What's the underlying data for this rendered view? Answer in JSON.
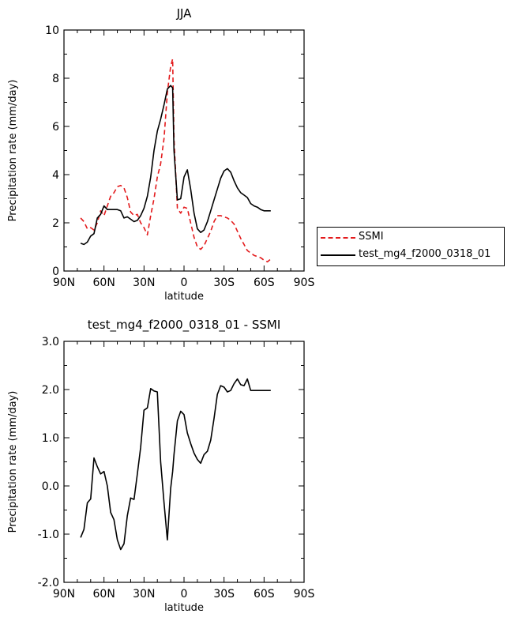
{
  "chart_data": [
    {
      "type": "line",
      "title": "JJA",
      "xlabel": "latitude",
      "ylabel": "Precipitation rate (mm/day)",
      "xlim": [
        90,
        -90
      ],
      "ylim": [
        0,
        10
      ],
      "xticks": [
        90,
        60,
        30,
        0,
        -30,
        -60,
        -90
      ],
      "xtick_labels": [
        "90N",
        "60N",
        "30N",
        "0",
        "30S",
        "60S",
        "90S"
      ],
      "yticks": [
        0,
        2,
        4,
        6,
        8,
        10
      ],
      "ytick_labels": [
        "0",
        "2",
        "4",
        "6",
        "8",
        "10"
      ],
      "grid": false,
      "legend": "outside-right",
      "series": [
        {
          "name": "SSMI",
          "color": "#e31a1c",
          "style": "dashed",
          "x": [
            77.5,
            75,
            72.5,
            70,
            67.5,
            65,
            62.5,
            60,
            57.5,
            55,
            52.5,
            50,
            47.5,
            45,
            42.5,
            40,
            37.5,
            35,
            32.5,
            30,
            27.5,
            25,
            22.5,
            20,
            17.5,
            15,
            12.5,
            10,
            8.5,
            7.5,
            5,
            2.5,
            0,
            -2.5,
            -5,
            -7.5,
            -10,
            -12.5,
            -15,
            -17.5,
            -20,
            -22.5,
            -25,
            -27.5,
            -30,
            -32.5,
            -35,
            -37.5,
            -40,
            -42.5,
            -45,
            -47.5,
            -50,
            -52.5,
            -55,
            -57.5,
            -60,
            -62.5,
            -65
          ],
          "values": [
            2.2,
            2.05,
            1.75,
            1.8,
            1.7,
            2.0,
            2.5,
            2.3,
            2.7,
            3.1,
            3.25,
            3.5,
            3.55,
            3.45,
            3.05,
            2.45,
            2.3,
            2.35,
            2.0,
            1.8,
            1.5,
            2.3,
            3.0,
            3.9,
            4.45,
            5.5,
            7.4,
            8.5,
            8.8,
            5.5,
            2.6,
            2.4,
            2.65,
            2.6,
            2.0,
            1.4,
            1.0,
            0.9,
            1.05,
            1.35,
            1.65,
            2.05,
            2.3,
            2.3,
            2.25,
            2.2,
            2.1,
            1.95,
            1.65,
            1.35,
            1.1,
            0.85,
            0.75,
            0.65,
            0.6,
            0.55,
            0.45,
            0.38,
            0.5
          ]
        },
        {
          "name": "test_mg4_f2000_0318_01",
          "color": "#000000",
          "style": "solid",
          "x": [
            77.5,
            75,
            72.5,
            70,
            67.5,
            65,
            62.5,
            60,
            57.5,
            55,
            52.5,
            50,
            47.5,
            45,
            42.5,
            40,
            37.5,
            35,
            32.5,
            30,
            27.5,
            25,
            22.5,
            20,
            17.5,
            15,
            12.5,
            10,
            8.5,
            7.5,
            5,
            2.5,
            0,
            -2.5,
            -5,
            -7.5,
            -10,
            -12.5,
            -15,
            -17.5,
            -20,
            -22.5,
            -25,
            -27.5,
            -30,
            -32.5,
            -35,
            -37.5,
            -40,
            -42.5,
            -45,
            -47.5,
            -50,
            -52.5,
            -55,
            -57.5,
            -60,
            -62.5,
            -65
          ],
          "values": [
            1.15,
            1.1,
            1.2,
            1.45,
            1.55,
            2.2,
            2.35,
            2.7,
            2.55,
            2.55,
            2.55,
            2.55,
            2.5,
            2.2,
            2.25,
            2.15,
            2.05,
            2.1,
            2.3,
            2.6,
            3.1,
            3.9,
            5.0,
            5.8,
            6.3,
            6.9,
            7.55,
            7.7,
            7.6,
            5.0,
            2.95,
            3.0,
            3.9,
            4.2,
            3.4,
            2.4,
            1.75,
            1.6,
            1.7,
            2.05,
            2.5,
            2.95,
            3.4,
            3.85,
            4.15,
            4.25,
            4.1,
            3.75,
            3.45,
            3.25,
            3.15,
            3.05,
            2.8,
            2.7,
            2.65,
            2.55,
            2.5,
            2.5,
            2.5
          ]
        }
      ]
    },
    {
      "type": "line",
      "title": "test_mg4_f2000_0318_01 - SSMI",
      "xlabel": "latitude",
      "ylabel": "Precipitation rate (mm/day)",
      "xlim": [
        90,
        -90
      ],
      "ylim": [
        -2.0,
        3.0
      ],
      "xticks": [
        90,
        60,
        30,
        0,
        -30,
        -60,
        -90
      ],
      "xtick_labels": [
        "90N",
        "60N",
        "30N",
        "0",
        "30S",
        "60S",
        "90S"
      ],
      "yticks": [
        -2,
        -1,
        0,
        1,
        2,
        3
      ],
      "ytick_labels": [
        "-2.0",
        "-1.0",
        "0.0",
        "1.0",
        "2.0",
        "3.0"
      ],
      "grid": false,
      "series": [
        {
          "color": "#000000",
          "style": "solid",
          "x": [
            77.5,
            75,
            72.5,
            70,
            67.5,
            65,
            62.5,
            60,
            57.5,
            55,
            52.5,
            50,
            47.5,
            45,
            42.5,
            40,
            37.5,
            35,
            32.5,
            30,
            27.5,
            25,
            22.5,
            20,
            17.5,
            15,
            12.5,
            10,
            8.5,
            7.5,
            5,
            2.5,
            0,
            -2.5,
            -5,
            -7.5,
            -10,
            -12.5,
            -15,
            -17.5,
            -20,
            -22.5,
            -25,
            -27.5,
            -30,
            -32.5,
            -35,
            -37.5,
            -40,
            -42.5,
            -45,
            -47.5,
            -50,
            -52.5,
            -55,
            -57.5,
            -60,
            -62.5,
            -65
          ],
          "values": [
            -1.07,
            -0.9,
            -0.35,
            -0.27,
            0.58,
            0.4,
            0.25,
            0.3,
            0.0,
            -0.55,
            -0.7,
            -1.12,
            -1.32,
            -1.2,
            -0.62,
            -0.25,
            -0.28,
            0.25,
            0.8,
            1.57,
            1.62,
            2.02,
            1.97,
            1.95,
            0.5,
            -0.35,
            -1.12,
            -0.05,
            0.3,
            0.65,
            1.35,
            1.55,
            1.48,
            1.1,
            0.88,
            0.68,
            0.55,
            0.47,
            0.65,
            0.72,
            0.95,
            1.4,
            1.9,
            2.08,
            2.05,
            1.95,
            1.98,
            2.12,
            2.22,
            2.1,
            2.08,
            2.22,
            1.98,
            1.98,
            1.98,
            1.98,
            1.98,
            1.98,
            1.98
          ]
        }
      ]
    }
  ]
}
